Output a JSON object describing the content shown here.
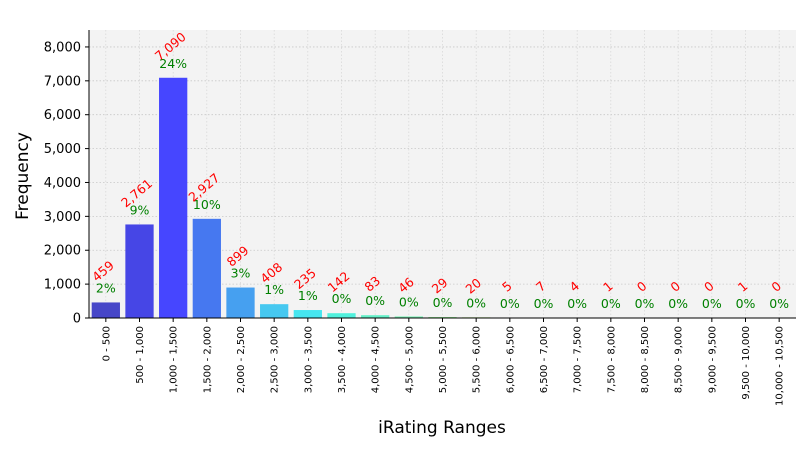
{
  "chart_data": {
    "type": "bar",
    "title": "",
    "xlabel": "iRating Ranges",
    "ylabel": "Frequency",
    "ylim": [
      0,
      8500
    ],
    "yticks": [
      0,
      1000,
      2000,
      3000,
      4000,
      5000,
      6000,
      7000,
      8000
    ],
    "ytick_labels": [
      "0",
      "1,000",
      "2,000",
      "3,000",
      "4,000",
      "5,000",
      "6,000",
      "7,000",
      "8,000"
    ],
    "grid": true,
    "categories": [
      "0 - 500",
      "500 - 1,000",
      "1,000 - 1,500",
      "1,500 - 2,000",
      "2,000 - 2,500",
      "2,500 - 3,000",
      "3,000 - 3,500",
      "3,500 - 4,000",
      "4,000 - 4,500",
      "4,500 - 5,000",
      "5,000 - 5,500",
      "5,500 - 6,000",
      "6,000 - 6,500",
      "6,500 - 7,000",
      "7,000 - 7,500",
      "7,500 - 8,000",
      "8,000 - 8,500",
      "8,500 - 9,000",
      "9,000 - 9,500",
      "9,500 - 10,000",
      "10,000 - 10,500"
    ],
    "values": [
      459,
      2761,
      7090,
      2927,
      899,
      408,
      235,
      142,
      83,
      46,
      29,
      20,
      5,
      7,
      4,
      1,
      0,
      0,
      0,
      1,
      0
    ],
    "value_labels": [
      "459",
      "2,761",
      "7,090",
      "2,927",
      "899",
      "408",
      "235",
      "142",
      "83",
      "46",
      "29",
      "20",
      "5",
      "7",
      "4",
      "1",
      "0",
      "0",
      "0",
      "1",
      "0"
    ],
    "percent_labels": [
      "2%",
      "9%",
      "24%",
      "10%",
      "3%",
      "1%",
      "1%",
      "0%",
      "0%",
      "0%",
      "0%",
      "0%",
      "0%",
      "0%",
      "0%",
      "0%",
      "0%",
      "0%",
      "0%",
      "0%",
      "0%"
    ],
    "colors": [
      "#4646c8",
      "#4646e6",
      "#4646ff",
      "#4678f0",
      "#46a0f0",
      "#46c8f0",
      "#46e6f0",
      "#50f0dc",
      "#64f0c8",
      "#78f0b4",
      "#96f096",
      "#b4f078",
      "#c8e664",
      "#dcdc50",
      "#e6c846",
      "#f0b446",
      "#f0a046",
      "#f08c46",
      "#f07846",
      "#f06446",
      "#f05046"
    ],
    "count_label_color": "#ff0000",
    "percent_label_color": "#008000"
  }
}
